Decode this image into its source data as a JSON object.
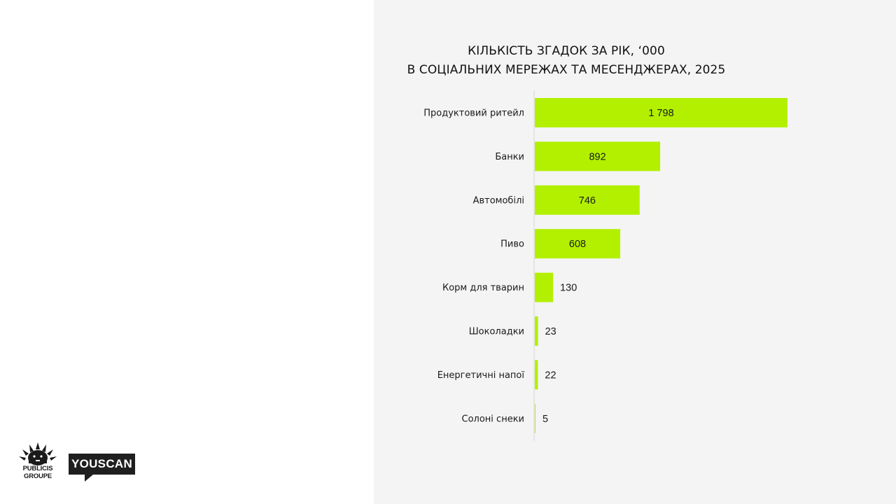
{
  "chart_data": {
    "type": "bar",
    "orientation": "horizontal",
    "title_lines": [
      "КІЛЬКІСТЬ ЗГАДОК ЗА РІК, ‘000",
      "В СОЦІАЛЬНИХ МЕРЕЖАХ ТА МЕСЕНДЖЕРАХ, 2025"
    ],
    "categories": [
      "Продуктовий ритейл",
      "Банки",
      "Автомобілі",
      "Пиво",
      "Корм для тварин",
      "Шоколадки",
      "Енергетичні напої",
      "Солоні снеки"
    ],
    "values": [
      1798,
      892,
      746,
      608,
      130,
      23,
      22,
      5
    ],
    "value_labels": [
      "1 798",
      "892",
      "746",
      "608",
      "130",
      "23",
      "22",
      "5"
    ],
    "bar_color": "#b2f000",
    "xlim": [
      0,
      2000
    ],
    "grid": false,
    "legend": "none"
  },
  "logos": {
    "publicis_line1": "PUBLICIS",
    "publicis_line2": "GROUPE",
    "youscan": "YOUSCAN"
  }
}
